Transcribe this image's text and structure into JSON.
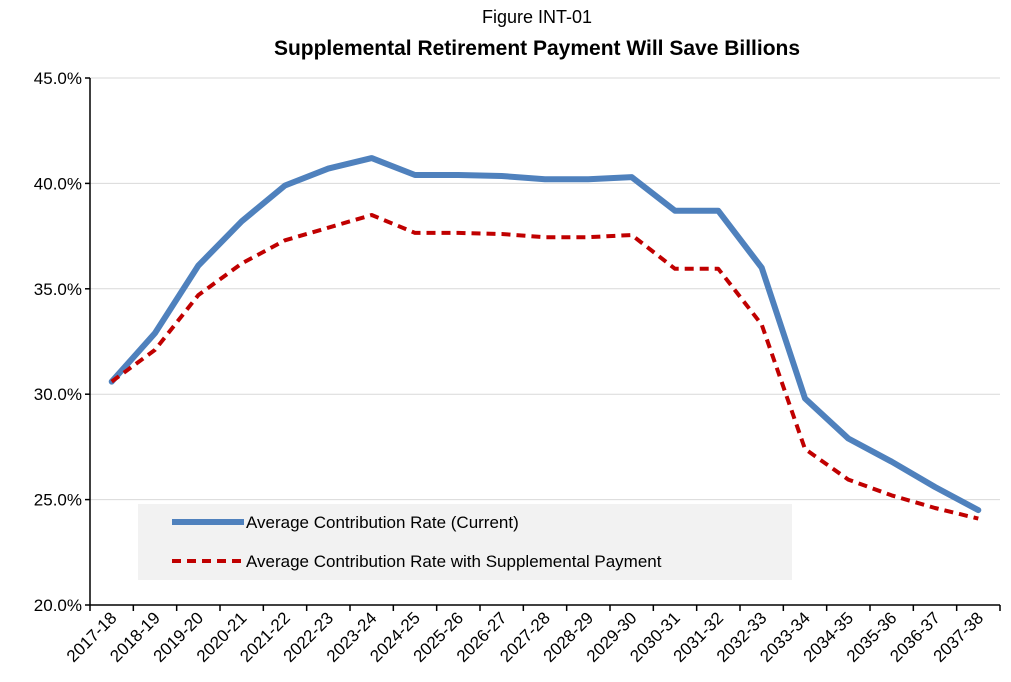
{
  "chart_data": {
    "type": "line",
    "subtitle": "Figure INT-01",
    "title": "Supplemental Retirement Payment Will Save Billions",
    "xlabel": "",
    "ylabel": "",
    "ylim": [
      20,
      45
    ],
    "y_ticks": [
      "20.0%",
      "25.0%",
      "30.0%",
      "35.0%",
      "40.0%",
      "45.0%"
    ],
    "y_tick_values": [
      20,
      25,
      30,
      35,
      40,
      45
    ],
    "grid": true,
    "legend_position": "bottom-left",
    "categories": [
      "2017-18",
      "2018-19",
      "2019-20",
      "2020-21",
      "2021-22",
      "2022-23",
      "2023-24",
      "2024-25",
      "2025-26",
      "2026-27",
      "2027-28",
      "2028-29",
      "2029-30",
      "2030-31",
      "2031-32",
      "2032-33",
      "2033-34",
      "2034-35",
      "2035-36",
      "2036-37",
      "2037-38"
    ],
    "series": [
      {
        "name": "Average Contribution Rate (Current)",
        "color": "#4f81bd",
        "style": "solid",
        "values": [
          30.6,
          32.9,
          36.1,
          38.2,
          39.9,
          40.7,
          41.2,
          40.4,
          40.4,
          40.35,
          40.2,
          40.2,
          40.3,
          38.7,
          38.7,
          36.0,
          29.8,
          27.9,
          26.8,
          25.6,
          24.5
        ]
      },
      {
        "name": "Average Contribution Rate with Supplemental Payment",
        "color": "#c00000",
        "style": "dashed",
        "values": [
          30.6,
          32.1,
          34.7,
          36.2,
          37.3,
          37.9,
          38.5,
          37.65,
          37.65,
          37.6,
          37.45,
          37.45,
          37.55,
          35.95,
          35.95,
          33.3,
          27.4,
          25.95,
          25.2,
          24.6,
          24.1
        ]
      }
    ]
  }
}
